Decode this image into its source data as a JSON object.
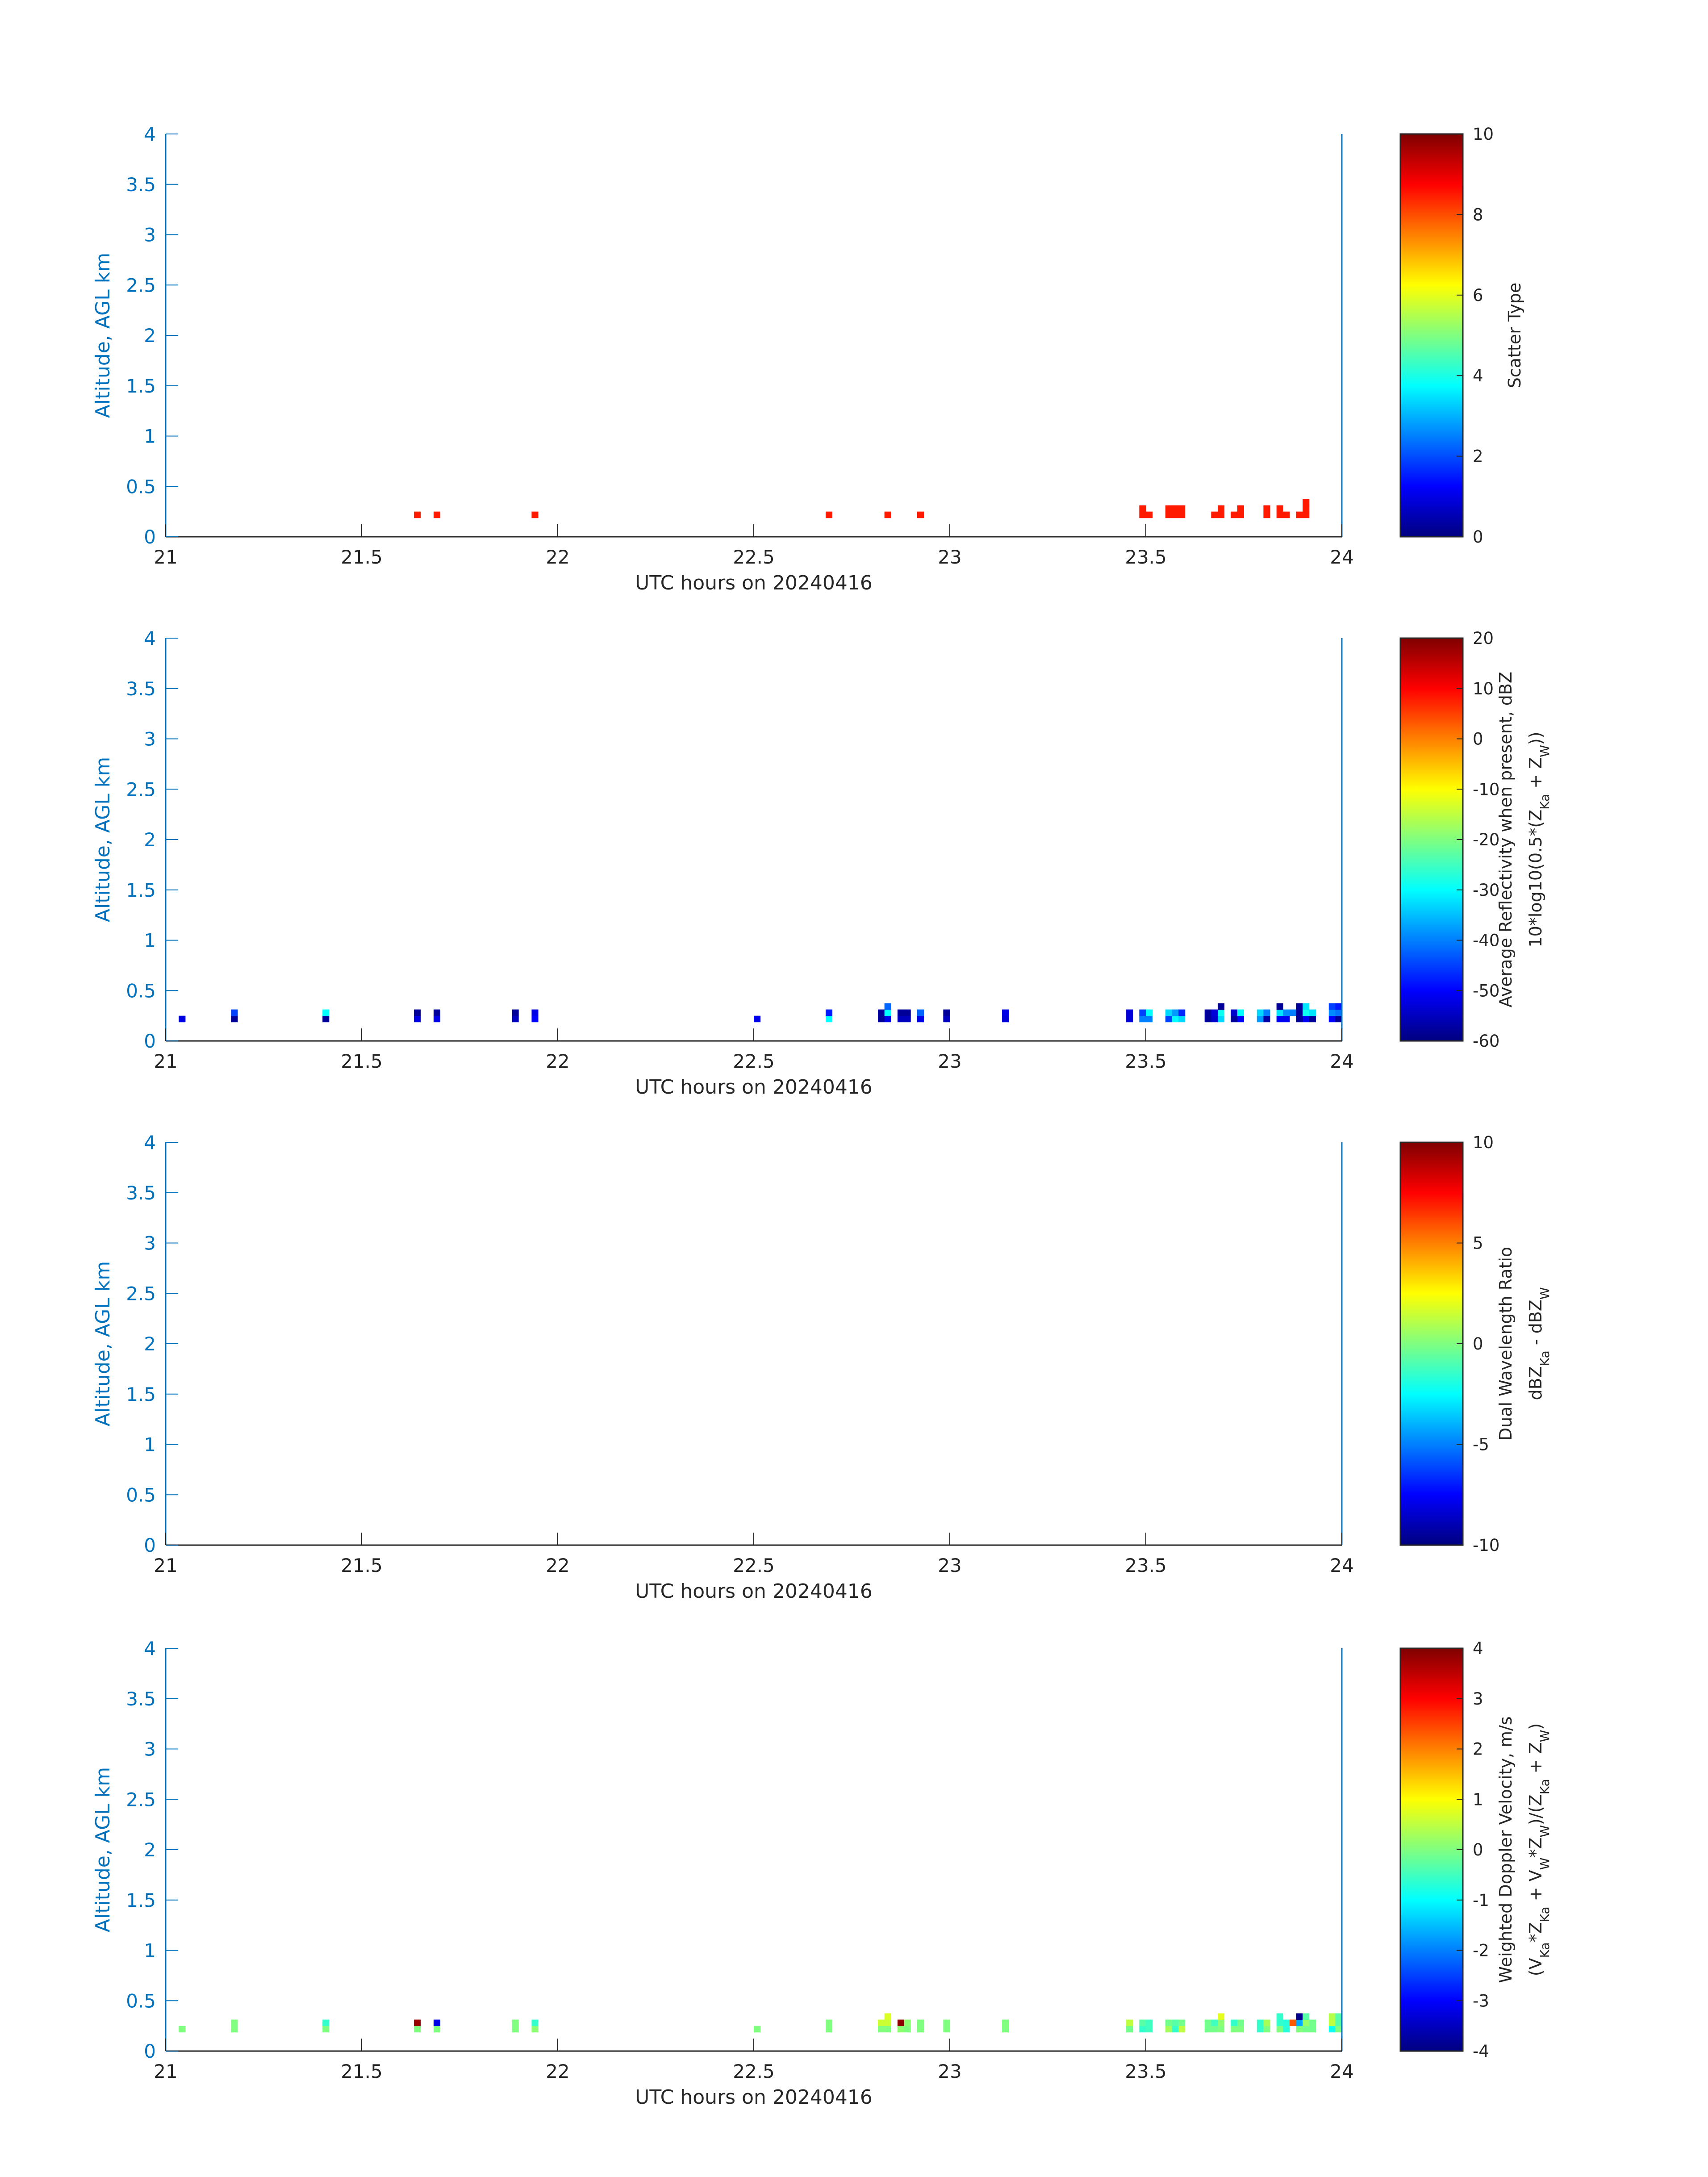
{
  "chart_data": [
    {
      "type": "heatmap",
      "xlabel": "UTC hours on 20240416",
      "ylabel": "Altitude, AGL km",
      "xlim": [
        21,
        24
      ],
      "ylim": [
        0,
        4
      ],
      "xticks": [
        "21",
        "21.5",
        "22",
        "22.5",
        "23",
        "23.5",
        "24"
      ],
      "yticks": [
        "0",
        "0.5",
        "1",
        "1.5",
        "2",
        "2.5",
        "3",
        "3.5",
        "4"
      ],
      "colorbar": {
        "label": [
          [
            {
              "t": "Scatter Type"
            }
          ]
        ],
        "range": [
          0,
          10
        ],
        "ticks": [
          "0",
          "2",
          "4",
          "6",
          "8",
          "10"
        ]
      },
      "cell_format": [
        "minutes_after_21UTC",
        "altitude_bin_index",
        "value"
      ],
      "altitude_bins_km": [
        0.1875,
        0.25,
        0.3125
      ],
      "altitude_bin_height_km": 0.0625,
      "time_bin_minutes": 1,
      "cells": [
        [
          38,
          0,
          8.5
        ],
        [
          41,
          0,
          8.5
        ],
        [
          56,
          0,
          8.5
        ],
        [
          101,
          0,
          8.5
        ],
        [
          110,
          0,
          8.5
        ],
        [
          115,
          0,
          8.5
        ],
        [
          149,
          0,
          8.5
        ],
        [
          149,
          1,
          8.5
        ],
        [
          150,
          0,
          8.5
        ],
        [
          153,
          0,
          8.5
        ],
        [
          153,
          1,
          8.5
        ],
        [
          154,
          0,
          8.5
        ],
        [
          154,
          1,
          8.5
        ],
        [
          155,
          0,
          8.5
        ],
        [
          155,
          1,
          8.5
        ],
        [
          160,
          0,
          8.5
        ],
        [
          161,
          0,
          8.5
        ],
        [
          161,
          1,
          8.5
        ],
        [
          163,
          0,
          8.5
        ],
        [
          164,
          0,
          8.5
        ],
        [
          164,
          1,
          8.5
        ],
        [
          168,
          0,
          8.5
        ],
        [
          168,
          1,
          8.5
        ],
        [
          170,
          0,
          8.5
        ],
        [
          170,
          1,
          8.5
        ],
        [
          171,
          0,
          8.5
        ],
        [
          173,
          0,
          8.5
        ],
        [
          174,
          0,
          8.5
        ],
        [
          174,
          1,
          8.5
        ],
        [
          174,
          2,
          8.5
        ]
      ]
    },
    {
      "type": "heatmap",
      "xlabel": "UTC hours on 20240416",
      "ylabel": "Altitude, AGL km",
      "xlim": [
        21,
        24
      ],
      "ylim": [
        0,
        4
      ],
      "xticks": [
        "21",
        "21.5",
        "22",
        "22.5",
        "23",
        "23.5",
        "24"
      ],
      "yticks": [
        "0",
        "0.5",
        "1",
        "1.5",
        "2",
        "2.5",
        "3",
        "3.5",
        "4"
      ],
      "colorbar": {
        "label": [
          [
            {
              "t": "Average Reflectivity when present, dBZ"
            }
          ],
          [
            {
              "t": "10*log10(0.5*(Z"
            },
            {
              "t": "Ka",
              "sub": true
            },
            {
              "t": " + Z"
            },
            {
              "t": "W",
              "sub": true
            },
            {
              "t": "))"
            }
          ]
        ],
        "range": [
          -60,
          20
        ],
        "ticks": [
          "-60",
          "-50",
          "-40",
          "-30",
          "-20",
          "-10",
          "0",
          "10",
          "20"
        ]
      },
      "cell_format": [
        "minutes_after_21UTC",
        "altitude_bin_index",
        "value"
      ],
      "altitude_bins_km": [
        0.1875,
        0.25,
        0.3125
      ],
      "altitude_bin_height_km": 0.0625,
      "time_bin_minutes": 1,
      "cells": [
        [
          2,
          0,
          -52
        ],
        [
          10,
          0,
          -58
        ],
        [
          10,
          1,
          -45
        ],
        [
          24,
          0,
          -58
        ],
        [
          24,
          1,
          -30
        ],
        [
          38,
          0,
          -52
        ],
        [
          38,
          1,
          -58
        ],
        [
          41,
          0,
          -52
        ],
        [
          41,
          1,
          -58
        ],
        [
          53,
          0,
          -55
        ],
        [
          53,
          1,
          -58
        ],
        [
          56,
          0,
          -50
        ],
        [
          56,
          1,
          -52
        ],
        [
          90,
          0,
          -52
        ],
        [
          101,
          0,
          -30
        ],
        [
          101,
          1,
          -48
        ],
        [
          109,
          0,
          -58
        ],
        [
          109,
          1,
          -58
        ],
        [
          110,
          0,
          -52
        ],
        [
          110,
          1,
          -30
        ],
        [
          110,
          2,
          -42
        ],
        [
          112,
          0,
          -55
        ],
        [
          112,
          1,
          -58
        ],
        [
          113,
          0,
          -55
        ],
        [
          113,
          1,
          -58
        ],
        [
          115,
          0,
          -52
        ],
        [
          115,
          1,
          -42
        ],
        [
          119,
          0,
          -55
        ],
        [
          119,
          1,
          -58
        ],
        [
          128,
          0,
          -53
        ],
        [
          128,
          1,
          -52
        ],
        [
          147,
          0,
          -53
        ],
        [
          147,
          1,
          -53
        ],
        [
          149,
          0,
          -40
        ],
        [
          149,
          1,
          -45
        ],
        [
          150,
          0,
          -40
        ],
        [
          150,
          1,
          -30
        ],
        [
          153,
          0,
          -45
        ],
        [
          153,
          1,
          -33
        ],
        [
          154,
          0,
          -30
        ],
        [
          154,
          1,
          -38
        ],
        [
          155,
          0,
          -33
        ],
        [
          155,
          1,
          -47
        ],
        [
          159,
          0,
          -58
        ],
        [
          159,
          1,
          -58
        ],
        [
          160,
          0,
          -54
        ],
        [
          160,
          1,
          -53
        ],
        [
          161,
          0,
          -33
        ],
        [
          161,
          1,
          -29
        ],
        [
          161,
          2,
          -58
        ],
        [
          163,
          0,
          -58
        ],
        [
          163,
          1,
          -54
        ],
        [
          164,
          0,
          -50
        ],
        [
          164,
          1,
          -30
        ],
        [
          167,
          0,
          -38
        ],
        [
          167,
          1,
          -33
        ],
        [
          168,
          0,
          -57
        ],
        [
          168,
          1,
          -40
        ],
        [
          170,
          0,
          -51
        ],
        [
          170,
          1,
          -32
        ],
        [
          170,
          2,
          -58
        ],
        [
          171,
          0,
          -51
        ],
        [
          171,
          1,
          -39
        ],
        [
          172,
          1,
          -40
        ],
        [
          173,
          0,
          -58
        ],
        [
          173,
          1,
          -58
        ],
        [
          173,
          2,
          -58
        ],
        [
          174,
          0,
          -51
        ],
        [
          174,
          1,
          -29
        ],
        [
          174,
          2,
          -32
        ],
        [
          175,
          0,
          -58
        ],
        [
          175,
          1,
          -32
        ],
        [
          178,
          0,
          -50
        ],
        [
          178,
          1,
          -39
        ],
        [
          178,
          2,
          -45
        ],
        [
          179,
          0,
          -58
        ],
        [
          179,
          1,
          -41
        ],
        [
          179,
          2,
          -48
        ]
      ]
    },
    {
      "type": "heatmap",
      "xlabel": "UTC hours on 20240416",
      "ylabel": "Altitude, AGL km",
      "xlim": [
        21,
        24
      ],
      "ylim": [
        0,
        4
      ],
      "xticks": [
        "21",
        "21.5",
        "22",
        "22.5",
        "23",
        "23.5",
        "24"
      ],
      "yticks": [
        "0",
        "0.5",
        "1",
        "1.5",
        "2",
        "2.5",
        "3",
        "3.5",
        "4"
      ],
      "colorbar": {
        "label": [
          [
            {
              "t": "Dual Wavelength Ratio"
            }
          ],
          [
            {
              "t": "dBZ"
            },
            {
              "t": "Ka",
              "sub": true
            },
            {
              "t": " - dBZ"
            },
            {
              "t": "W",
              "sub": true
            }
          ]
        ],
        "range": [
          -10,
          10
        ],
        "ticks": [
          "-10",
          "-5",
          "0",
          "5",
          "10"
        ]
      },
      "cell_format": [
        "minutes_after_21UTC",
        "altitude_bin_index",
        "value"
      ],
      "altitude_bins_km": [
        0.1875,
        0.25,
        0.3125
      ],
      "altitude_bin_height_km": 0.0625,
      "time_bin_minutes": 1,
      "cells": []
    },
    {
      "type": "heatmap",
      "xlabel": "UTC hours on 20240416",
      "ylabel": "Altitude, AGL km",
      "xlim": [
        21,
        24
      ],
      "ylim": [
        0,
        4
      ],
      "xticks": [
        "21",
        "21.5",
        "22",
        "22.5",
        "23",
        "23.5",
        "24"
      ],
      "yticks": [
        "0",
        "0.5",
        "1",
        "1.5",
        "2",
        "2.5",
        "3",
        "3.5",
        "4"
      ],
      "colorbar": {
        "label": [
          [
            {
              "t": "Weighted Doppler Velocity, m/s"
            }
          ],
          [
            {
              "t": "(V"
            },
            {
              "t": "Ka",
              "sub": true
            },
            {
              "t": "*Z"
            },
            {
              "t": "Ka",
              "sub": true
            },
            {
              "t": " + V"
            },
            {
              "t": "W",
              "sub": true
            },
            {
              "t": "*Z"
            },
            {
              "t": "W",
              "sub": true
            },
            {
              "t": ")/(Z"
            },
            {
              "t": "Ka",
              "sub": true
            },
            {
              "t": " + Z"
            },
            {
              "t": "W",
              "sub": true
            },
            {
              "t": ")"
            }
          ]
        ],
        "range": [
          -4,
          4
        ],
        "ticks": [
          "-4",
          "-3",
          "-2",
          "-1",
          "0",
          "1",
          "2",
          "3",
          "4"
        ]
      },
      "cell_format": [
        "minutes_after_21UTC",
        "altitude_bin_index",
        "value"
      ],
      "altitude_bins_km": [
        0.1875,
        0.25,
        0.3125
      ],
      "altitude_bin_height_km": 0.0625,
      "time_bin_minutes": 1,
      "cells": [
        [
          2,
          0,
          0
        ],
        [
          10,
          0,
          0
        ],
        [
          10,
          1,
          0
        ],
        [
          24,
          0,
          0
        ],
        [
          24,
          1,
          -0.6
        ],
        [
          38,
          0,
          0
        ],
        [
          38,
          1,
          3.8
        ],
        [
          41,
          0,
          0
        ],
        [
          41,
          1,
          -3.2
        ],
        [
          53,
          0,
          0
        ],
        [
          53,
          1,
          0
        ],
        [
          56,
          0,
          0.1
        ],
        [
          56,
          1,
          -0.6
        ],
        [
          90,
          0,
          0
        ],
        [
          101,
          0,
          0
        ],
        [
          101,
          1,
          0
        ],
        [
          109,
          0,
          0
        ],
        [
          109,
          1,
          0.6
        ],
        [
          110,
          0,
          0
        ],
        [
          110,
          1,
          0.6
        ],
        [
          110,
          2,
          0.7
        ],
        [
          112,
          0,
          0.1
        ],
        [
          112,
          1,
          3.9
        ],
        [
          113,
          0,
          0
        ],
        [
          113,
          1,
          0.1
        ],
        [
          115,
          0,
          0
        ],
        [
          115,
          1,
          0
        ],
        [
          119,
          0,
          0
        ],
        [
          119,
          1,
          0
        ],
        [
          128,
          0,
          0
        ],
        [
          128,
          1,
          0
        ],
        [
          147,
          0,
          -0.1
        ],
        [
          147,
          1,
          0.5
        ],
        [
          149,
          0,
          -0.6
        ],
        [
          149,
          1,
          -0.3
        ],
        [
          150,
          0,
          -0.5
        ],
        [
          150,
          1,
          -0.5
        ],
        [
          153,
          0,
          0.3
        ],
        [
          153,
          1,
          -0.1
        ],
        [
          154,
          0,
          -0.6
        ],
        [
          154,
          1,
          -0.3
        ],
        [
          155,
          0,
          0.5
        ],
        [
          155,
          1,
          -0.1
        ],
        [
          159,
          0,
          -0.1
        ],
        [
          159,
          1,
          -0.1
        ],
        [
          160,
          0,
          -0.1
        ],
        [
          160,
          1,
          -0.5
        ],
        [
          161,
          0,
          0
        ],
        [
          161,
          1,
          0.1
        ],
        [
          161,
          2,
          0.8
        ],
        [
          163,
          0,
          0
        ],
        [
          163,
          1,
          -0.6
        ],
        [
          164,
          0,
          0
        ],
        [
          164,
          1,
          -0.1
        ],
        [
          167,
          0,
          -0.6
        ],
        [
          167,
          1,
          -0.6
        ],
        [
          168,
          0,
          0
        ],
        [
          168,
          1,
          0.3
        ],
        [
          170,
          0,
          0
        ],
        [
          170,
          1,
          -0.6
        ],
        [
          170,
          2,
          -0.6
        ],
        [
          171,
          0,
          -0.7
        ],
        [
          171,
          1,
          -0.7
        ],
        [
          172,
          1,
          2.3
        ],
        [
          173,
          0,
          0
        ],
        [
          173,
          1,
          -1.7
        ],
        [
          173,
          2,
          -3.9
        ],
        [
          174,
          0,
          -0.1
        ],
        [
          174,
          1,
          0.2
        ],
        [
          174,
          2,
          -0.3
        ],
        [
          175,
          0,
          -0.1
        ],
        [
          175,
          1,
          -0.1
        ],
        [
          178,
          0,
          -0.9
        ],
        [
          178,
          1,
          0.5
        ],
        [
          178,
          2,
          0.4
        ],
        [
          179,
          0,
          0
        ],
        [
          179,
          1,
          -0.3
        ],
        [
          179,
          2,
          -0.3
        ]
      ]
    }
  ],
  "colors": {
    "axis_y": "#0072bd",
    "axis_x": "#262626",
    "colormap": "jet"
  }
}
